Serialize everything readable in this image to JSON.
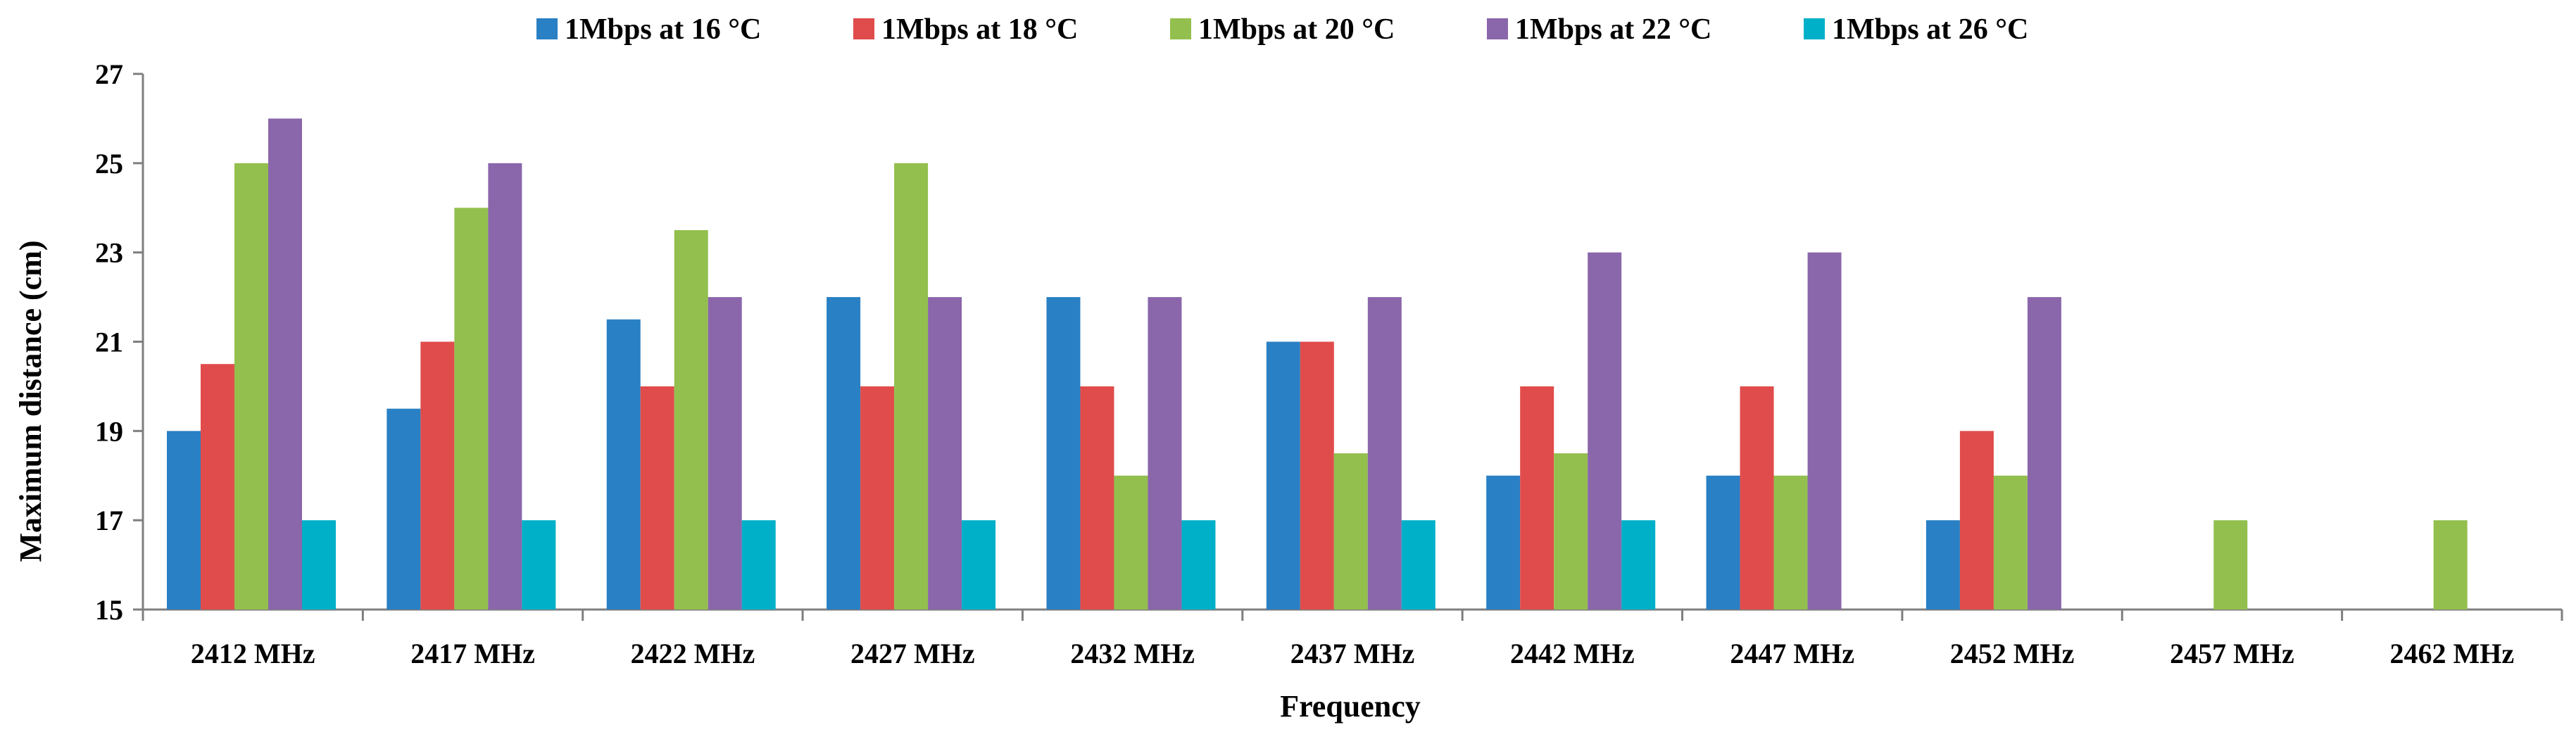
{
  "chart_data": {
    "type": "bar",
    "title": "",
    "xlabel": "Frequency",
    "ylabel": "Maximum distance (cm)",
    "ylim": [
      15,
      27
    ],
    "yticks": [
      "15",
      "17",
      "19",
      "21",
      "23",
      "25",
      "27"
    ],
    "grid": false,
    "legend_position": "top",
    "categories": [
      "2412 MHz",
      "2417 MHz",
      "2422 MHz",
      "2427 MHz",
      "2432 MHz",
      "2437 MHz",
      "2442 MHz",
      "2447 MHz",
      "2452 MHz",
      "2457 MHz",
      "2462 MHz"
    ],
    "series": [
      {
        "name": "1Mbps at 16 °C",
        "color": "#2980c4",
        "values": [
          19,
          19.5,
          21.5,
          22,
          22,
          21,
          18,
          18,
          17,
          null,
          null
        ]
      },
      {
        "name": "1Mbps at 18 °C",
        "color": "#e04c4b",
        "values": [
          20.5,
          21,
          20,
          20,
          20,
          21,
          20,
          20,
          19,
          null,
          null
        ]
      },
      {
        "name": "1Mbps at 20 °C",
        "color": "#93bf4e",
        "values": [
          25,
          24,
          23.5,
          25,
          18,
          18.5,
          18.5,
          18,
          18,
          17,
          17
        ]
      },
      {
        "name": "1Mbps at 22 °C",
        "color": "#8a66ab",
        "values": [
          26,
          25,
          22,
          22,
          22,
          22,
          23,
          23,
          22,
          null,
          null
        ]
      },
      {
        "name": "1Mbps at 26 °C",
        "color": "#00b0c8",
        "values": [
          17,
          17,
          17,
          17,
          17,
          17,
          17,
          null,
          null,
          null,
          null
        ]
      }
    ]
  }
}
